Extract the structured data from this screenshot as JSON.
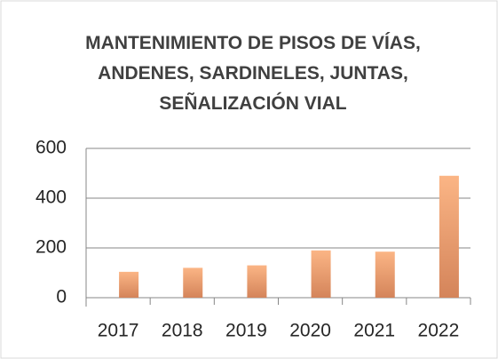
{
  "chart_data": {
    "type": "bar",
    "title": "MANTENIMIENTO DE PISOS DE VÍAS, ANDENES, SARDINELES, JUNTAS, SEÑALIZACIÓN VIAL",
    "categories": [
      "2017",
      "2018",
      "2019",
      "2020",
      "2021",
      "2022"
    ],
    "values": [
      104,
      120,
      130,
      190,
      185,
      490
    ],
    "color": "#f7a872",
    "ylim": [
      0,
      600
    ],
    "yticks": [
      0,
      200,
      400,
      600
    ],
    "grid": true
  }
}
